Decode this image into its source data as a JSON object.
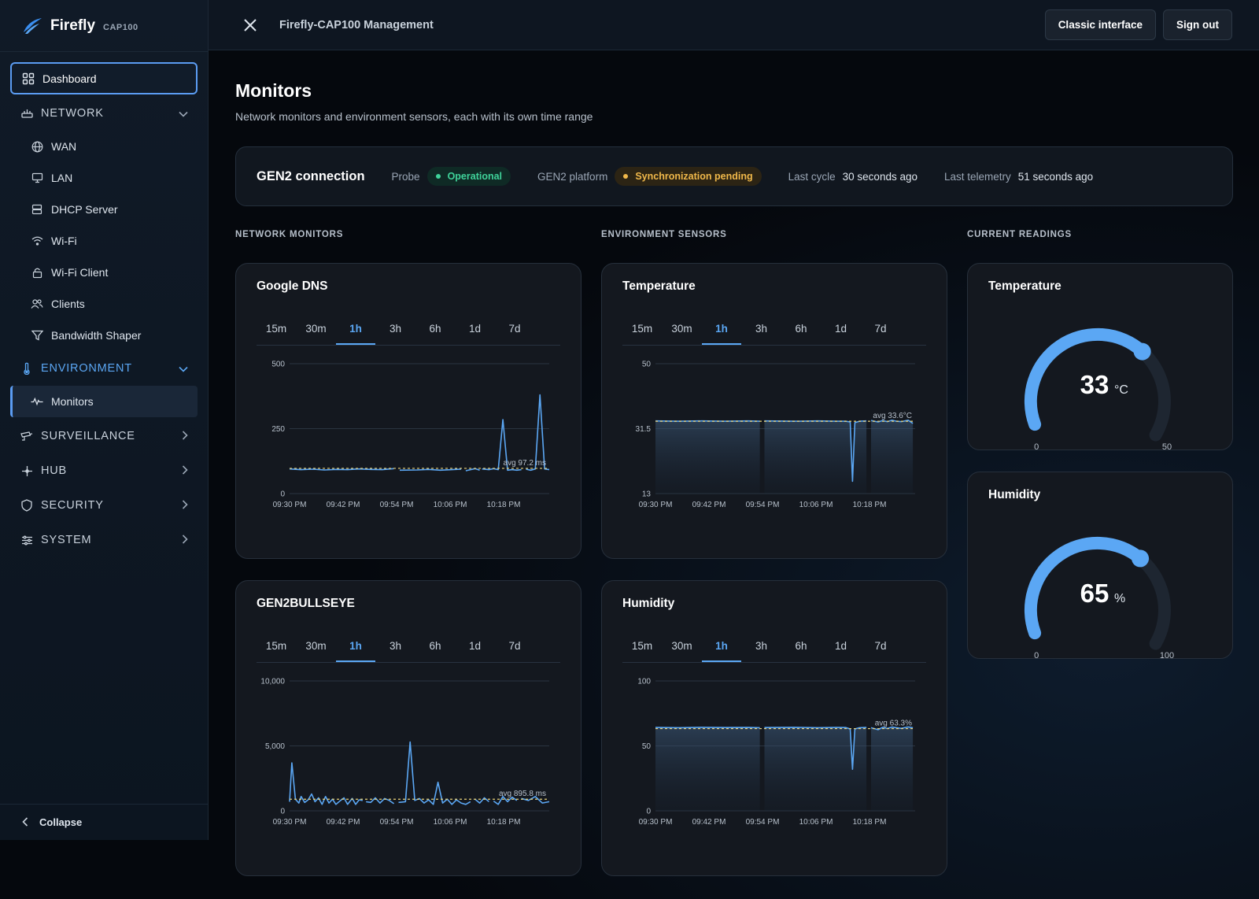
{
  "brand": {
    "name": "Firefly",
    "model": "CAP100"
  },
  "sidebar": {
    "dashboard": "Dashboard",
    "groups": [
      {
        "label": "NETWORK",
        "icon": "network-icon"
      },
      {
        "label": "ENVIRONMENT",
        "icon": "thermometer-icon"
      },
      {
        "label": "SURVEILLANCE",
        "icon": "camera-icon"
      },
      {
        "label": "HUB",
        "icon": "hub-icon"
      },
      {
        "label": "SECURITY",
        "icon": "shield-icon"
      },
      {
        "label": "SYSTEM",
        "icon": "sliders-icon"
      }
    ],
    "network_items": [
      "WAN",
      "LAN",
      "DHCP Server",
      "Wi-Fi",
      "Wi-Fi Client",
      "Clients",
      "Bandwidth Shaper"
    ],
    "environment_items": [
      "Monitors"
    ],
    "collapse": "Collapse"
  },
  "topbar": {
    "title": "Firefly-CAP100 Management",
    "classic": "Classic interface",
    "signout": "Sign out"
  },
  "page": {
    "title": "Monitors",
    "subtitle": "Network monitors and environment sensors, each with its own time range"
  },
  "connection": {
    "title": "GEN2 connection",
    "probe_label": "Probe",
    "probe_status": "Operational",
    "platform_label": "GEN2 platform",
    "platform_status": "Synchronization pending",
    "cycle_label": "Last cycle",
    "cycle_value": "30 seconds ago",
    "telemetry_label": "Last telemetry",
    "telemetry_value": "51 seconds ago"
  },
  "sections": {
    "network": "NETWORK MONITORS",
    "environment": "ENVIRONMENT SENSORS",
    "readings": "CURRENT READINGS"
  },
  "ranges": [
    "15m",
    "30m",
    "1h",
    "3h",
    "6h",
    "1d",
    "7d"
  ],
  "active_range": "1h",
  "colors": {
    "accent": "#5ba7f4",
    "avg_line": "#e8d27a",
    "ok": "#3fd39a",
    "warn": "#f0b84a"
  },
  "chart_data": [
    {
      "id": "google-dns",
      "title": "Google DNS",
      "type": "line",
      "x_ticks": [
        "09:30 PM",
        "09:42 PM",
        "09:54 PM",
        "10:06 PM",
        "10:18 PM"
      ],
      "y_ticks": [
        "500",
        "250",
        "0"
      ],
      "ylim": [
        0,
        500
      ],
      "avg": 97.2,
      "avg_label": "avg 97.2 ms",
      "area": false,
      "segments": [
        [
          [
            0,
            95
          ],
          [
            5,
            92
          ],
          [
            10,
            94
          ],
          [
            15,
            91
          ],
          [
            20,
            93
          ],
          [
            25,
            92
          ],
          [
            30,
            95
          ],
          [
            35,
            93
          ],
          [
            40,
            92
          ],
          [
            45,
            96
          ]
        ],
        [
          [
            47.5,
            90
          ],
          [
            55,
            91
          ],
          [
            60,
            93
          ],
          [
            65,
            90
          ],
          [
            70,
            92
          ],
          [
            74,
            94
          ]
        ],
        [
          [
            76,
            88
          ],
          [
            80,
            96
          ],
          [
            82,
            90
          ]
        ],
        [
          [
            83,
            95
          ],
          [
            86,
            92
          ],
          [
            88,
            96
          ],
          [
            90,
            92
          ],
          [
            92,
            285
          ],
          [
            94,
            90
          ],
          [
            96,
            92
          ],
          [
            98,
            90
          ],
          [
            100,
            92
          ]
        ],
        [
          [
            102,
            94
          ],
          [
            104,
            90
          ],
          [
            106,
            95
          ],
          [
            108,
            380
          ],
          [
            110,
            95
          ],
          [
            112,
            92
          ]
        ]
      ]
    },
    {
      "id": "gen2bullseye",
      "title": "GEN2BULLSEYE",
      "type": "line",
      "x_ticks": [
        "09:30 PM",
        "09:42 PM",
        "09:54 PM",
        "10:06 PM",
        "10:18 PM"
      ],
      "y_ticks": [
        "10,000",
        "5,000",
        "0"
      ],
      "ylim": [
        0,
        10000
      ],
      "avg": 895.8,
      "avg_label": "avg 895.8 ms",
      "area": false,
      "segments": [
        [
          [
            0,
            700
          ],
          [
            1,
            3700
          ],
          [
            2.5,
            900
          ],
          [
            4,
            600
          ],
          [
            5,
            1100
          ],
          [
            6.5,
            650
          ],
          [
            8,
            850
          ],
          [
            9.5,
            1300
          ],
          [
            11,
            700
          ],
          [
            12.5,
            1000
          ],
          [
            14,
            500
          ],
          [
            15.5,
            1100
          ],
          [
            17,
            600
          ],
          [
            18.5,
            900
          ],
          [
            20,
            500
          ],
          [
            22,
            800
          ],
          [
            23.5,
            1000
          ],
          [
            25,
            500
          ],
          [
            27,
            950
          ],
          [
            28.5,
            500
          ],
          [
            30,
            850
          ],
          [
            31.5,
            800
          ]
        ],
        [
          [
            33,
            700
          ],
          [
            35,
            650
          ],
          [
            37,
            1000
          ],
          [
            39,
            600
          ],
          [
            41,
            950
          ],
          [
            43,
            800
          ],
          [
            45,
            550
          ]
        ],
        [
          [
            47,
            650
          ],
          [
            50,
            700
          ],
          [
            52,
            5300
          ],
          [
            54,
            800
          ],
          [
            56,
            950
          ],
          [
            58,
            600
          ],
          [
            60,
            850
          ],
          [
            62,
            500
          ],
          [
            64,
            2200
          ],
          [
            66,
            600
          ],
          [
            68,
            900
          ],
          [
            70,
            500
          ],
          [
            72,
            850
          ],
          [
            74,
            600
          ],
          [
            76,
            500
          ],
          [
            78,
            700
          ]
        ],
        [
          [
            80,
            900
          ],
          [
            82,
            600
          ],
          [
            84,
            1000
          ],
          [
            86,
            700
          ]
        ],
        [
          [
            88,
            750
          ],
          [
            90,
            500
          ],
          [
            92,
            1100
          ],
          [
            94,
            700
          ],
          [
            96,
            1050
          ],
          [
            98,
            800
          ]
        ],
        [
          [
            100,
            950
          ],
          [
            103,
            800
          ],
          [
            106,
            1100
          ],
          [
            109,
            600
          ],
          [
            112,
            700
          ]
        ]
      ]
    },
    {
      "id": "temperature-chart",
      "title": "Temperature",
      "type": "area",
      "x_ticks": [
        "09:30 PM",
        "09:42 PM",
        "09:54 PM",
        "10:06 PM",
        "10:18 PM"
      ],
      "y_ticks": [
        "50",
        "31.5",
        "13"
      ],
      "ylim": [
        13,
        50
      ],
      "avg": 33.6,
      "avg_label": "avg 33.6°C",
      "area": true,
      "segments": [
        [
          [
            0,
            33.7
          ],
          [
            10,
            33.6
          ],
          [
            20,
            33.7
          ],
          [
            30,
            33.6
          ],
          [
            40,
            33.7
          ],
          [
            45,
            33.6
          ]
        ],
        [
          [
            47,
            33.7
          ],
          [
            60,
            33.6
          ],
          [
            70,
            33.7
          ],
          [
            78,
            33.6
          ],
          [
            82,
            33.6
          ],
          [
            84,
            33.4
          ],
          [
            85,
            16.5
          ],
          [
            86,
            33.2
          ],
          [
            88,
            33.6
          ],
          [
            91,
            33.7
          ]
        ],
        [
          [
            93,
            33.8
          ],
          [
            96,
            33.4
          ],
          [
            98,
            33.8
          ],
          [
            100,
            33.5
          ],
          [
            102,
            33.9
          ],
          [
            104,
            33.6
          ],
          [
            106,
            33.5
          ],
          [
            109,
            33.9
          ],
          [
            111,
            33.0
          ]
        ]
      ]
    },
    {
      "id": "humidity-chart",
      "title": "Humidity",
      "type": "area",
      "x_ticks": [
        "09:30 PM",
        "09:42 PM",
        "09:54 PM",
        "10:06 PM",
        "10:18 PM"
      ],
      "y_ticks": [
        "100",
        "50",
        "0"
      ],
      "ylim": [
        0,
        100
      ],
      "avg": 63.3,
      "avg_label": "avg 63.3%",
      "area": true,
      "segments": [
        [
          [
            0,
            64.2
          ],
          [
            10,
            64.0
          ],
          [
            20,
            64.3
          ],
          [
            30,
            64.1
          ],
          [
            40,
            64.2
          ],
          [
            45,
            64.0
          ]
        ],
        [
          [
            47,
            64.1
          ],
          [
            60,
            64.3
          ],
          [
            70,
            64.0
          ],
          [
            78,
            64.2
          ],
          [
            82,
            64.1
          ],
          [
            84,
            63.0
          ],
          [
            85,
            32
          ],
          [
            86,
            63.0
          ],
          [
            88,
            64.0
          ],
          [
            91,
            64.2
          ]
        ],
        [
          [
            93,
            64.0
          ],
          [
            96,
            62.5
          ],
          [
            98,
            64.3
          ],
          [
            100,
            63.4
          ],
          [
            102,
            64.5
          ],
          [
            104,
            64.0
          ],
          [
            106,
            63.5
          ],
          [
            109,
            64.6
          ],
          [
            111,
            64.0
          ]
        ]
      ]
    }
  ],
  "readings": [
    {
      "id": "temp-gauge",
      "title": "Temperature",
      "value": 33,
      "unit": "°C",
      "min": 0,
      "max": 50
    },
    {
      "id": "humidity-gauge",
      "title": "Humidity",
      "value": 65,
      "unit": "%",
      "min": 0,
      "max": 100
    }
  ]
}
